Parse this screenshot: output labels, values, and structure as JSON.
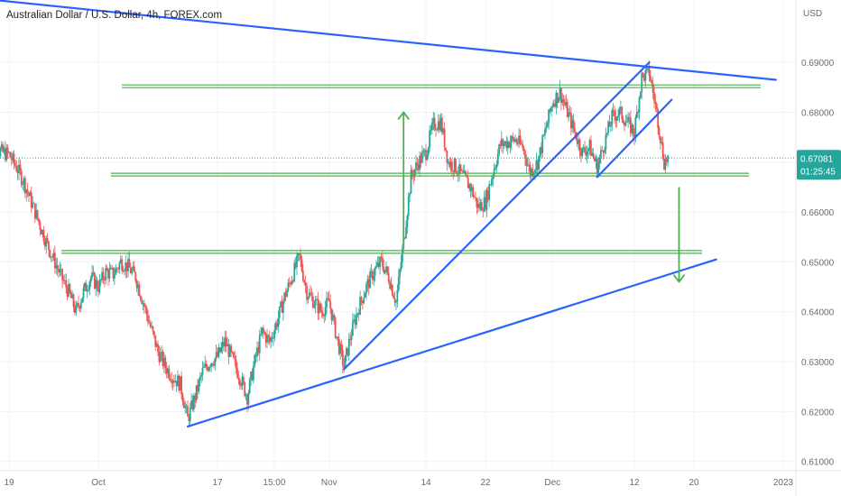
{
  "header": {
    "title": "Australian Dollar / U.S. Dollar, 4h, FOREX.com",
    "currency": "USD"
  },
  "colors": {
    "up": "#26a69a",
    "down": "#ef5350",
    "support": "#4caf50",
    "trendline": "#2962ff",
    "last_price_bg": "#26a69a",
    "grid": "#f0f3fa"
  },
  "chart_data": {
    "type": "candlestick",
    "y_axis": {
      "ylim": [
        0.6085,
        0.7025
      ],
      "ticks": [
        "0.61000",
        "0.62000",
        "0.63000",
        "0.64000",
        "0.65000",
        "0.66000",
        "0.67000",
        "0.68000",
        "0.69000"
      ],
      "tick_values": [
        0.61,
        0.62,
        0.63,
        0.64,
        0.65,
        0.66,
        0.67,
        0.68,
        0.69
      ]
    },
    "x_axis": {
      "labels": [
        "19",
        "Oct",
        "17",
        "15:00",
        "Nov",
        "14",
        "22",
        "Dec",
        "12",
        "20",
        "2023"
      ],
      "label_dates": [
        "2022-09-19",
        "2022-10-01",
        "2022-10-17",
        "2022-10-24 15:00",
        "2022-11-01",
        "2022-11-14",
        "2022-11-22",
        "2022-12-01",
        "2022-12-12",
        "2022-12-20",
        "2023-01-01"
      ]
    },
    "last_price": {
      "value": "0.67081",
      "countdown": "01:25:45"
    },
    "support_levels": [
      0.6852,
      0.6675,
      0.652
    ],
    "trendlines": [
      {
        "name": "upper descending",
        "from": [
          "2022-09-02",
          0.7048
        ],
        "to": [
          "2022-12-31",
          0.6865
        ]
      },
      {
        "name": "lower ascending",
        "from": [
          "2022-10-13",
          0.617
        ],
        "to": [
          "2022-12-23",
          0.6505
        ]
      },
      {
        "name": "rising channel lower",
        "from": [
          "2022-11-03",
          0.6285
        ],
        "to": [
          "2022-12-14",
          0.69
        ]
      },
      {
        "name": "rising channel upper",
        "from": [
          "2022-12-07",
          0.667
        ],
        "to": [
          "2022-12-17",
          0.6825
        ]
      }
    ],
    "arrows": [
      {
        "direction": "up",
        "date": "2022-11-11",
        "from": 0.653,
        "to": 0.68
      },
      {
        "direction": "down",
        "date": "2022-12-18",
        "from": 0.665,
        "to": 0.646
      }
    ],
    "price_path": [
      [
        "2022-09-16",
        0.6705
      ],
      [
        "2022-09-17",
        0.6725
      ],
      [
        "2022-09-19",
        0.6715
      ],
      [
        "2022-09-20",
        0.669
      ],
      [
        "2022-09-21",
        0.666
      ],
      [
        "2022-09-22",
        0.662
      ],
      [
        "2022-09-23",
        0.658
      ],
      [
        "2022-09-24",
        0.654
      ],
      [
        "2022-09-25",
        0.6505
      ],
      [
        "2022-09-26",
        0.647
      ],
      [
        "2022-09-27",
        0.644
      ],
      [
        "2022-09-28",
        0.64
      ],
      [
        "2022-09-29",
        0.644
      ],
      [
        "2022-09-30",
        0.647
      ],
      [
        "2022-10-01",
        0.645
      ],
      [
        "2022-10-02",
        0.648
      ],
      [
        "2022-10-03",
        0.6475
      ],
      [
        "2022-10-04",
        0.65
      ],
      [
        "2022-10-05",
        0.649
      ],
      [
        "2022-10-06",
        0.647
      ],
      [
        "2022-10-07",
        0.642
      ],
      [
        "2022-10-08",
        0.637
      ],
      [
        "2022-10-09",
        0.632
      ],
      [
        "2022-10-10",
        0.629
      ],
      [
        "2022-10-11",
        0.627
      ],
      [
        "2022-10-12",
        0.6255
      ],
      [
        "2022-10-13",
        0.6185
      ],
      [
        "2022-10-14",
        0.623
      ],
      [
        "2022-10-15",
        0.628
      ],
      [
        "2022-10-16",
        0.63
      ],
      [
        "2022-10-17",
        0.631
      ],
      [
        "2022-10-18",
        0.634
      ],
      [
        "2022-10-19",
        0.6305
      ],
      [
        "2022-10-20",
        0.627
      ],
      [
        "2022-10-21",
        0.623
      ],
      [
        "2022-10-22",
        0.63
      ],
      [
        "2022-10-23",
        0.636
      ],
      [
        "2022-10-24",
        0.634
      ],
      [
        "2022-10-25",
        0.638
      ],
      [
        "2022-10-26",
        0.643
      ],
      [
        "2022-10-27",
        0.647
      ],
      [
        "2022-10-28",
        0.651
      ],
      [
        "2022-10-29",
        0.644
      ],
      [
        "2022-10-30",
        0.642
      ],
      [
        "2022-10-31",
        0.64
      ],
      [
        "2022-11-01",
        0.642
      ],
      [
        "2022-11-02",
        0.635
      ],
      [
        "2022-11-03",
        0.629
      ],
      [
        "2022-11-04",
        0.636
      ],
      [
        "2022-11-05",
        0.641
      ],
      [
        "2022-11-06",
        0.645
      ],
      [
        "2022-11-07",
        0.648
      ],
      [
        "2022-11-08",
        0.65
      ],
      [
        "2022-11-09",
        0.647
      ],
      [
        "2022-11-10",
        0.642
      ],
      [
        "2022-11-11",
        0.654
      ],
      [
        "2022-11-12",
        0.667
      ],
      [
        "2022-11-13",
        0.67
      ],
      [
        "2022-11-14",
        0.672
      ],
      [
        "2022-11-15",
        0.6775
      ],
      [
        "2022-11-16",
        0.678
      ],
      [
        "2022-11-17",
        0.67
      ],
      [
        "2022-11-18",
        0.669
      ],
      [
        "2022-11-19",
        0.667
      ],
      [
        "2022-11-20",
        0.665
      ],
      [
        "2022-11-21",
        0.661
      ],
      [
        "2022-11-22",
        0.662
      ],
      [
        "2022-11-23",
        0.668
      ],
      [
        "2022-11-24",
        0.6735
      ],
      [
        "2022-11-25",
        0.674
      ],
      [
        "2022-11-26",
        0.6745
      ],
      [
        "2022-11-27",
        0.673
      ],
      [
        "2022-11-28",
        0.668
      ],
      [
        "2022-11-29",
        0.67
      ],
      [
        "2022-11-30",
        0.676
      ],
      [
        "2022-12-01",
        0.682
      ],
      [
        "2022-12-02",
        0.684
      ],
      [
        "2022-12-03",
        0.68
      ],
      [
        "2022-12-04",
        0.676
      ],
      [
        "2022-12-05",
        0.672
      ],
      [
        "2022-12-06",
        0.673
      ],
      [
        "2022-12-07",
        0.669
      ],
      [
        "2022-12-08",
        0.674
      ],
      [
        "2022-12-09",
        0.679
      ],
      [
        "2022-12-10",
        0.68
      ],
      [
        "2022-12-11",
        0.678
      ],
      [
        "2022-12-12",
        0.676
      ],
      [
        "2022-12-13",
        0.687
      ],
      [
        "2022-12-14",
        0.688
      ],
      [
        "2022-12-15",
        0.68
      ],
      [
        "2022-12-16",
        0.67
      ],
      [
        "2022-12-16T12",
        0.6708
      ]
    ]
  }
}
